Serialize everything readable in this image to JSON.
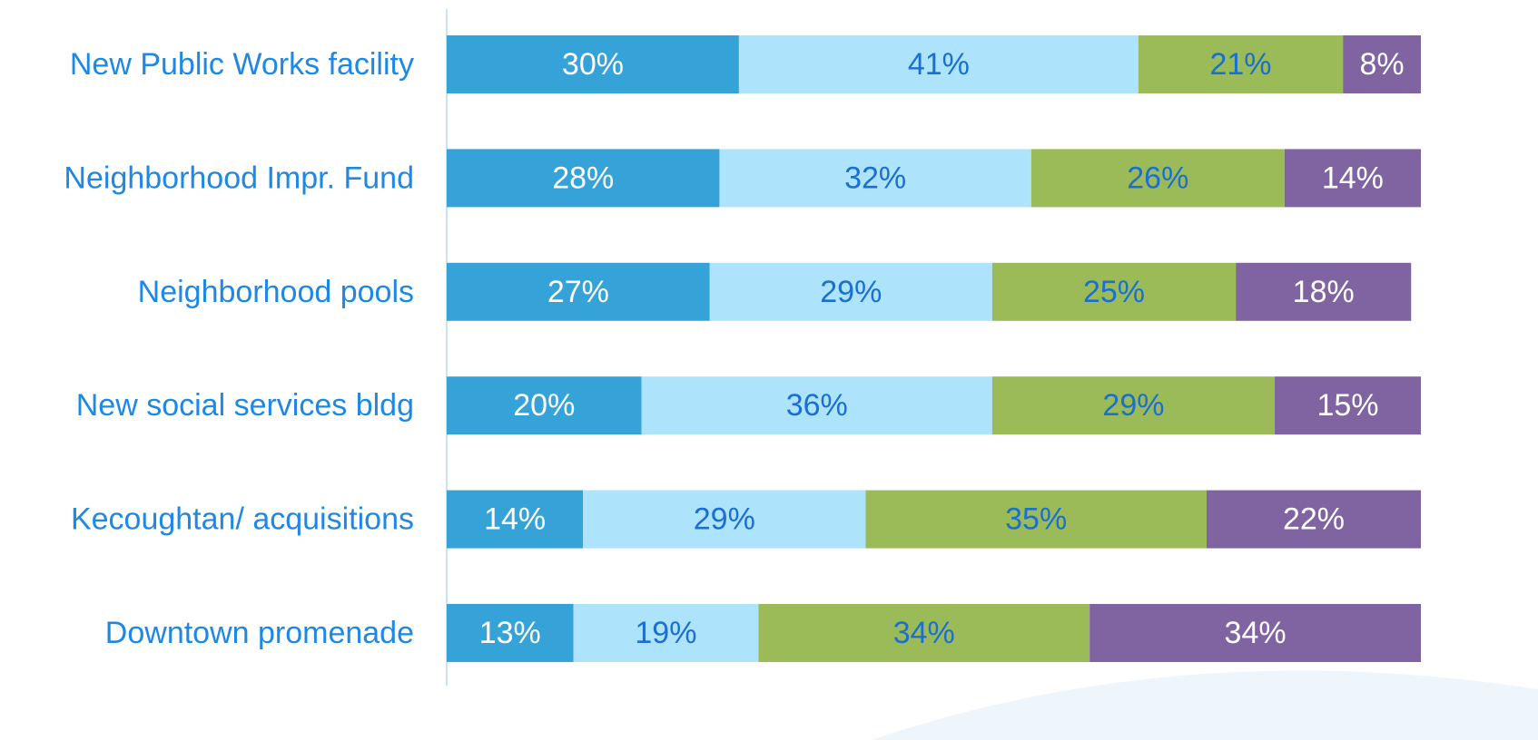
{
  "chart_data": {
    "type": "stacked_bar_horizontal",
    "categories": [
      "New Public Works facility",
      "Neighborhood Impr. Fund",
      "Neighborhood pools",
      "New social services bldg",
      "Kecoughtan/ acquisitions",
      "Downtown promenade"
    ],
    "xlim": [
      0,
      100
    ],
    "series": [
      {
        "color": "#35a3d8",
        "label_color": "#ffffff",
        "values": [
          30,
          28,
          27,
          20,
          14,
          13
        ],
        "value_labels": [
          "30%",
          "28%",
          "27%",
          "20%",
          "14%",
          "13%"
        ]
      },
      {
        "color": "#ade3fb",
        "label_color": "#1a6fd0",
        "values": [
          41,
          32,
          29,
          36,
          29,
          19
        ],
        "value_labels": [
          "41%",
          "32%",
          "29%",
          "36%",
          "29%",
          "19%"
        ]
      },
      {
        "color": "#9bbb59",
        "label_color": "#1a6fd0",
        "values": [
          21,
          26,
          25,
          29,
          35,
          34
        ],
        "value_labels": [
          "21%",
          "26%",
          "25%",
          "29%",
          "35%",
          "34%"
        ]
      },
      {
        "color": "#8064a2",
        "label_color": "#ffffff",
        "values": [
          8,
          14,
          18,
          15,
          22,
          34
        ],
        "value_labels": [
          "8%",
          "14%",
          "18%",
          "15%",
          "22%",
          "34%"
        ]
      }
    ]
  }
}
